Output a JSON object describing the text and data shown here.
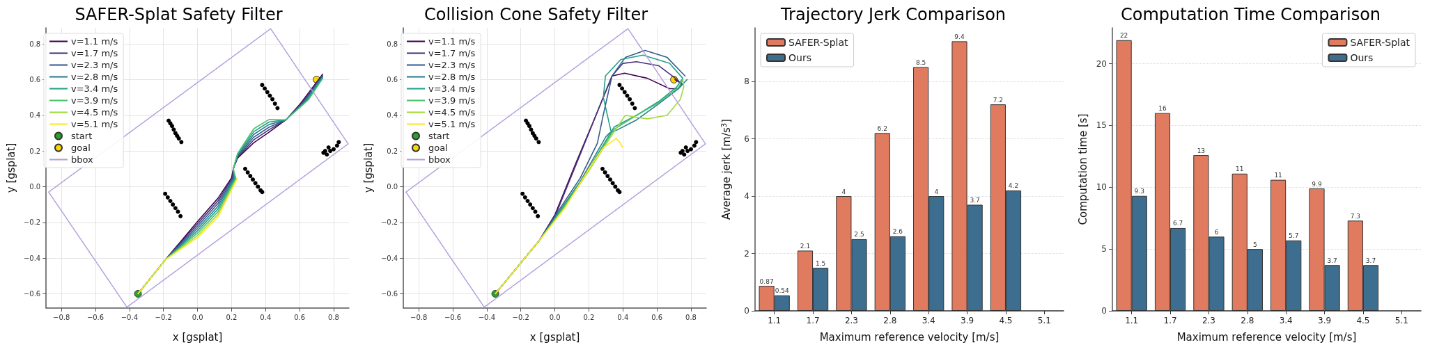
{
  "chart_data": [
    {
      "type": "line",
      "title": "SAFER-Splat Safety Filter",
      "xlabel": "x [gsplat]",
      "ylabel": "y [gsplat]",
      "xlim": [
        -0.89,
        0.89
      ],
      "ylim": [
        -0.68,
        0.89
      ],
      "xticks": [
        {
          "value": -0.8,
          "label": "−0.8"
        },
        {
          "value": -0.6,
          "label": "−0.6"
        },
        {
          "value": -0.4,
          "label": "−0.4"
        },
        {
          "value": -0.2,
          "label": "−0.2"
        },
        {
          "value": 0,
          "label": "0.0"
        },
        {
          "value": 0.2,
          "label": "0.2"
        },
        {
          "value": 0.4,
          "label": "0.4"
        },
        {
          "value": 0.6,
          "label": "0.6"
        },
        {
          "value": 0.8,
          "label": "0.8"
        }
      ],
      "yticks": [
        {
          "value": -0.6,
          "label": "−0.6"
        },
        {
          "value": -0.4,
          "label": "−0.4"
        },
        {
          "value": -0.2,
          "label": "−0.2"
        },
        {
          "value": 0,
          "label": "0.0"
        },
        {
          "value": 0.2,
          "label": "0.2"
        },
        {
          "value": 0.4,
          "label": "0.4"
        },
        {
          "value": 0.6,
          "label": "0.6"
        },
        {
          "value": 0.8,
          "label": "0.8"
        }
      ],
      "grid": true,
      "legend": "top left",
      "marker": "none",
      "line_style": "solid",
      "series": [
        {
          "name": "v=1.1 m/s",
          "color": "#440154",
          "x": [
            -0.35,
            -0.19,
            0.0,
            0.12,
            0.2,
            0.21,
            0.235,
            0.33,
            0.42,
            0.52,
            0.6,
            0.735
          ],
          "values": [
            -0.6,
            -0.41,
            -0.195,
            -0.065,
            0.05,
            0.1,
            0.16,
            0.246,
            0.305,
            0.375,
            0.46,
            0.63
          ]
        },
        {
          "name": "v=1.7 m/s",
          "color": "#46327e",
          "x": [
            -0.35,
            -0.19,
            0.0,
            0.12,
            0.205,
            0.21,
            0.235,
            0.33,
            0.42,
            0.52,
            0.61,
            0.735
          ],
          "values": [
            -0.6,
            -0.41,
            -0.208,
            -0.08,
            0.05,
            0.1,
            0.165,
            0.262,
            0.319,
            0.375,
            0.465,
            0.625
          ]
        },
        {
          "name": "v=2.3 m/s",
          "color": "#365c8d",
          "x": [
            -0.35,
            -0.19,
            0.0,
            0.12,
            0.21,
            0.21,
            0.235,
            0.33,
            0.42,
            0.52,
            0.62,
            0.735
          ],
          "values": [
            -0.6,
            -0.41,
            -0.221,
            -0.095,
            0.048,
            0.1,
            0.17,
            0.277,
            0.333,
            0.375,
            0.47,
            0.62
          ]
        },
        {
          "name": "v=2.8 m/s",
          "color": "#277f8e",
          "x": [
            -0.35,
            -0.19,
            0.0,
            0.12,
            0.215,
            0.21,
            0.235,
            0.33,
            0.42,
            0.52,
            0.63,
            0.735
          ],
          "values": [
            -0.6,
            -0.41,
            -0.234,
            -0.11,
            0.047,
            0.1,
            0.175,
            0.293,
            0.348,
            0.375,
            0.475,
            0.615
          ]
        },
        {
          "name": "v=3.4 m/s",
          "color": "#1fa187",
          "x": [
            -0.35,
            -0.19,
            0.0,
            0.12,
            0.22,
            0.21,
            0.235,
            0.33,
            0.42,
            0.52,
            0.64,
            0.735
          ],
          "values": [
            -0.6,
            -0.41,
            -0.247,
            -0.125,
            0.046,
            0.1,
            0.18,
            0.308,
            0.362,
            0.375,
            0.48,
            0.61
          ]
        },
        {
          "name": "v=3.9 m/s",
          "color": "#4ac16d",
          "x": [
            -0.35,
            -0.19,
            0.0,
            0.12,
            0.225,
            0.21,
            0.235,
            0.33,
            0.42,
            0.52,
            0.65,
            0.735
          ],
          "values": [
            -0.6,
            -0.41,
            -0.26,
            -0.14,
            0.046,
            0.1,
            0.185,
            0.324,
            0.376,
            0.375,
            0.485,
            0.605
          ]
        },
        {
          "name": "v=4.5 m/s",
          "color": "#a0da39",
          "x": [
            -0.35,
            -0.19,
            0.0,
            0.12,
            0.23
          ],
          "values": [
            -0.6,
            -0.41,
            -0.273,
            -0.155,
            0.045
          ]
        },
        {
          "name": "v=5.1 m/s",
          "color": "#fde725",
          "x": [
            -0.35,
            -0.19,
            0.0,
            0.12,
            0.233
          ],
          "values": [
            -0.6,
            -0.41,
            -0.285,
            -0.169,
            0.045
          ]
        },
        {
          "type": "scatter",
          "marker": "circle",
          "color": "#000000",
          "x": [
            -0.17,
            -0.16,
            -0.15,
            -0.14,
            -0.13,
            -0.12,
            -0.11,
            -0.095,
            -0.19,
            -0.175,
            -0.16,
            -0.145,
            -0.13,
            -0.115,
            -0.1,
            0.38,
            0.395,
            0.41,
            0.425,
            0.44,
            0.455,
            0.47,
            0.28,
            0.295,
            0.31,
            0.325,
            0.34,
            0.355,
            0.37,
            0.38,
            0.74,
            0.76,
            0.78,
            0.8,
            0.82,
            0.83,
            0.77,
            0.75
          ],
          "values": [
            0.37,
            0.355,
            0.34,
            0.32,
            0.3,
            0.285,
            0.27,
            0.25,
            -0.04,
            -0.06,
            -0.08,
            -0.1,
            -0.12,
            -0.14,
            -0.165,
            0.57,
            0.55,
            0.53,
            0.51,
            0.49,
            0.465,
            0.44,
            0.1,
            0.08,
            0.06,
            0.04,
            0.02,
            0.0,
            -0.02,
            -0.03,
            0.19,
            0.18,
            0.2,
            0.21,
            0.23,
            0.25,
            0.22,
            0.2
          ]
        },
        {
          "name": "start",
          "type": "scatter",
          "marker": "circle",
          "color": "#2ca02c",
          "x": [
            -0.35
          ],
          "values": [
            -0.6
          ]
        },
        {
          "name": "goal",
          "type": "scatter",
          "marker": "circle",
          "color": "#ffd700",
          "x": [
            0.7
          ],
          "values": [
            0.6
          ]
        },
        {
          "name": "bbox",
          "color": "#b39ddb",
          "line_style": "dotted",
          "x": [
            -0.415,
            -0.875,
            0.43,
            0.885,
            null,
            0.885,
            -0.415
          ],
          "values": [
            -0.675,
            -0.03,
            0.885,
            0.24,
            null,
            0.24,
            -0.675
          ]
        }
      ]
    },
    {
      "type": "line",
      "title": "Collision Cone Safety Filter",
      "xlabel": "x [gsplat]",
      "ylabel": "y [gsplat]",
      "xlim": [
        -0.89,
        0.89
      ],
      "ylim": [
        -0.68,
        0.89
      ],
      "xticks": [
        {
          "value": -0.8,
          "label": "−0.8"
        },
        {
          "value": -0.6,
          "label": "−0.6"
        },
        {
          "value": -0.4,
          "label": "−0.4"
        },
        {
          "value": -0.2,
          "label": "−0.2"
        },
        {
          "value": 0,
          "label": "0.0"
        },
        {
          "value": 0.2,
          "label": "0.2"
        },
        {
          "value": 0.4,
          "label": "0.4"
        },
        {
          "value": 0.6,
          "label": "0.6"
        },
        {
          "value": 0.8,
          "label": "0.8"
        }
      ],
      "yticks": [
        {
          "value": -0.6,
          "label": "−0.6"
        },
        {
          "value": -0.4,
          "label": "−0.4"
        },
        {
          "value": -0.2,
          "label": "−0.2"
        },
        {
          "value": 0,
          "label": "0.0"
        },
        {
          "value": 0.2,
          "label": "0.2"
        },
        {
          "value": 0.4,
          "label": "0.4"
        },
        {
          "value": 0.6,
          "label": "0.6"
        },
        {
          "value": 0.8,
          "label": "0.8"
        }
      ],
      "grid": true,
      "legend": "top left",
      "marker": "none",
      "line_style": "solid",
      "series": [
        {
          "name": "v=1.1 m/s",
          "color": "#440154",
          "x": [
            -0.35,
            -0.09,
            0.0,
            0.127,
            0.23,
            0.336,
            0.41,
            0.544,
            0.674,
            0.726,
            0.75,
            0.706
          ],
          "values": [
            -0.6,
            -0.3,
            -0.158,
            0.14,
            0.374,
            0.62,
            0.636,
            0.607,
            0.549,
            0.549,
            0.575,
            0.6
          ]
        },
        {
          "name": "v=1.7 m/s",
          "color": "#46327e",
          "x": [
            -0.35,
            -0.09,
            0.01,
            0.153,
            0.258,
            0.336,
            0.4,
            0.48,
            0.61,
            0.726,
            0.74
          ],
          "values": [
            -0.6,
            -0.3,
            -0.145,
            0.19,
            0.438,
            0.62,
            0.691,
            0.7,
            0.678,
            0.594,
            0.575
          ]
        },
        {
          "name": "v=2.3 m/s",
          "color": "#365c8d",
          "x": [
            -0.35,
            -0.09,
            0.023,
            0.15,
            0.25,
            0.284,
            0.336,
            0.414,
            0.53,
            0.66,
            0.765
          ],
          "values": [
            -0.6,
            -0.3,
            -0.132,
            0.05,
            0.244,
            0.4,
            0.62,
            0.724,
            0.763,
            0.724,
            0.62
          ]
        },
        {
          "name": "v=2.8 m/s",
          "color": "#277f8e",
          "x": [
            -0.35,
            -0.09,
            0.036,
            0.153,
            0.3,
            0.323,
            0.36,
            0.48,
            0.61,
            0.726,
            0.777
          ],
          "values": [
            -0.6,
            -0.3,
            -0.126,
            0.036,
            0.28,
            0.302,
            0.315,
            0.374,
            0.464,
            0.549,
            0.6
          ]
        },
        {
          "name": "v=3.4 m/s",
          "color": "#1fa187",
          "x": [
            -0.35,
            -0.09,
            0.04,
            0.2,
            0.349,
            0.48,
            0.61,
            0.713,
            0.752,
            0.674,
            0.518,
            0.388,
            0.297,
            0.285,
            0.33
          ],
          "values": [
            -0.6,
            -0.3,
            -0.125,
            0.1,
            0.335,
            0.4,
            0.477,
            0.555,
            0.607,
            0.691,
            0.737,
            0.713,
            0.62,
            0.5,
            0.31
          ]
        },
        {
          "name": "v=3.9 m/s",
          "color": "#4ac16d",
          "x": [
            -0.35,
            -0.09,
            0.05,
            0.2,
            0.349,
            0.48,
            0.61,
            0.726,
            0.752
          ],
          "values": [
            -0.6,
            -0.3,
            -0.12,
            0.095,
            0.322,
            0.4,
            0.47,
            0.555,
            0.597
          ]
        },
        {
          "name": "v=4.5 m/s",
          "color": "#a0da39",
          "x": [
            -0.35,
            -0.09,
            0.055,
            0.2,
            0.35,
            0.414,
            0.48,
            0.544,
            0.66,
            0.738,
            0.758,
            0.752
          ],
          "values": [
            -0.6,
            -0.3,
            -0.12,
            0.09,
            0.31,
            0.4,
            0.389,
            0.38,
            0.4,
            0.49,
            0.562,
            0.6
          ]
        },
        {
          "name": "v=5.1 m/s",
          "color": "#fde725",
          "x": [
            -0.35,
            -0.09,
            0.06,
            0.2,
            0.284,
            0.36,
            0.38,
            0.4
          ],
          "values": [
            -0.6,
            -0.3,
            -0.119,
            0.1,
            0.218,
            0.27,
            0.25,
            0.218
          ]
        },
        {
          "type": "scatter",
          "marker": "circle",
          "color": "#000000",
          "x": [
            -0.17,
            -0.16,
            -0.15,
            -0.14,
            -0.13,
            -0.12,
            -0.11,
            -0.095,
            -0.19,
            -0.175,
            -0.16,
            -0.145,
            -0.13,
            -0.115,
            -0.1,
            0.38,
            0.395,
            0.41,
            0.425,
            0.44,
            0.455,
            0.47,
            0.28,
            0.295,
            0.31,
            0.325,
            0.34,
            0.355,
            0.37,
            0.38,
            0.74,
            0.76,
            0.78,
            0.8,
            0.82,
            0.83,
            0.77,
            0.75
          ],
          "values": [
            0.37,
            0.355,
            0.34,
            0.32,
            0.3,
            0.285,
            0.27,
            0.25,
            -0.04,
            -0.06,
            -0.08,
            -0.1,
            -0.12,
            -0.14,
            -0.165,
            0.57,
            0.55,
            0.53,
            0.51,
            0.49,
            0.465,
            0.44,
            0.1,
            0.08,
            0.06,
            0.04,
            0.02,
            0.0,
            -0.02,
            -0.03,
            0.19,
            0.18,
            0.2,
            0.21,
            0.23,
            0.25,
            0.22,
            0.2
          ]
        },
        {
          "name": "start",
          "type": "scatter",
          "marker": "circle",
          "color": "#2ca02c",
          "x": [
            -0.35
          ],
          "values": [
            -0.6
          ]
        },
        {
          "name": "goal",
          "type": "scatter",
          "marker": "circle",
          "color": "#ffd700",
          "x": [
            0.7
          ],
          "values": [
            0.6
          ]
        },
        {
          "name": "bbox",
          "color": "#b39ddb",
          "line_style": "dotted",
          "x": [
            -0.415,
            -0.875,
            0.43,
            0.885,
            null,
            0.885,
            -0.415
          ],
          "values": [
            -0.675,
            -0.03,
            0.885,
            0.24,
            null,
            0.24,
            -0.675
          ]
        }
      ]
    },
    {
      "type": "bar",
      "title": "Trajectory Jerk Comparison",
      "xlabel": "Maximum reference velocity [m/s]",
      "ylabel": "Average jerk [m/s$^{3}$]",
      "categories": [
        "1.1",
        "1.7",
        "2.3",
        "2.8",
        "3.4",
        "3.9",
        "4.5",
        "5.1"
      ],
      "ylim": [
        0,
        9.87
      ],
      "yticks": [
        0,
        2,
        4,
        6,
        8
      ],
      "grid": "y",
      "legend": "top left",
      "data_labels": true,
      "series": [
        {
          "name": "SAFER-Splat",
          "color": "#e07b5f",
          "values": [
            0.87,
            2.1,
            4,
            6.2,
            8.5,
            9.4,
            7.2,
            null
          ]
        },
        {
          "name": "Ours",
          "color": "#3d6d8f",
          "values": [
            0.54,
            1.5,
            2.5,
            2.6,
            4,
            3.7,
            4.2,
            null
          ]
        }
      ]
    },
    {
      "type": "bar",
      "title": "Computation Time Comparison",
      "xlabel": "Maximum reference velocity [m/s]",
      "ylabel": "Computation time [s]",
      "categories": [
        "1.1",
        "1.7",
        "2.3",
        "2.8",
        "3.4",
        "3.9",
        "4.5",
        "5.1"
      ],
      "ylim": [
        0,
        22.9
      ],
      "yticks": [
        0,
        5,
        10,
        15,
        20
      ],
      "grid": "y",
      "legend": "top right",
      "series": [
        {
          "name": "SAFER-Splat",
          "color": "#e07b5f",
          "values": [
            21.9,
            16,
            12.6,
            11.1,
            10.6,
            9.9,
            7.3,
            null
          ],
          "value_labels": [
            "22",
            "16",
            "13",
            "11",
            "11",
            "9.9",
            "7.3",
            null
          ]
        },
        {
          "name": "Ours",
          "color": "#3d6d8f",
          "values": [
            9.3,
            6.7,
            6,
            5,
            5.7,
            3.7,
            3.7,
            null
          ],
          "value_labels": [
            "9.3",
            "6.7",
            "6",
            "5",
            "5.7",
            "3.7",
            "3.7",
            null
          ]
        }
      ]
    }
  ]
}
